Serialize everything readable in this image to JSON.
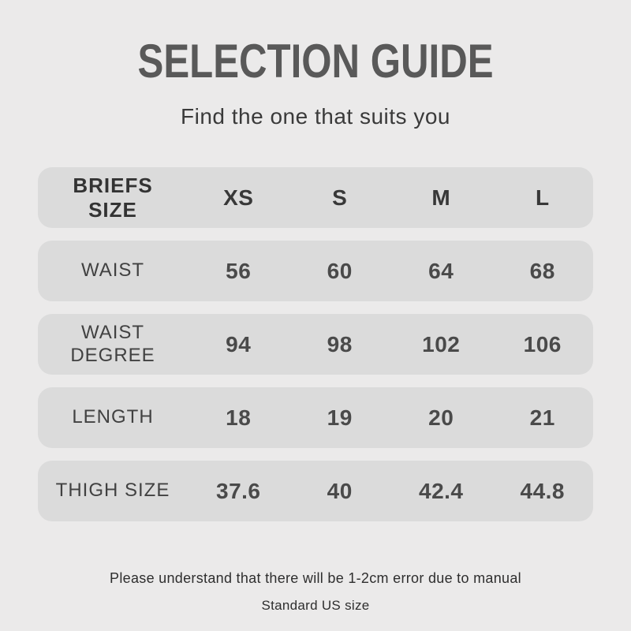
{
  "page": {
    "title": "SELECTION GUIDE",
    "subtitle": "Find the one that suits you",
    "footnote_line1": "Please understand that there will be 1-2cm error due to manual",
    "footnote_line2": "Standard US size"
  },
  "colors": {
    "page_background": "#ebeaea",
    "row_background": "#dbdbdb",
    "title_text": "#595959",
    "table_text": "#454545"
  },
  "chart_data": {
    "type": "table",
    "title": "SELECTION GUIDE",
    "columns": [
      "BRIEFS SIZE",
      "XS",
      "S",
      "M",
      "L"
    ],
    "rows": [
      {
        "label": "WAIST",
        "values": [
          "56",
          "60",
          "64",
          "68"
        ]
      },
      {
        "label": "WAIST DEGREE",
        "values": [
          "94",
          "98",
          "102",
          "106"
        ]
      },
      {
        "label": "LENGTH",
        "values": [
          "18",
          "19",
          "20",
          "21"
        ]
      },
      {
        "label": "THIGH SIZE",
        "values": [
          "37.6",
          "40",
          "42.4",
          "44.8"
        ]
      }
    ]
  }
}
